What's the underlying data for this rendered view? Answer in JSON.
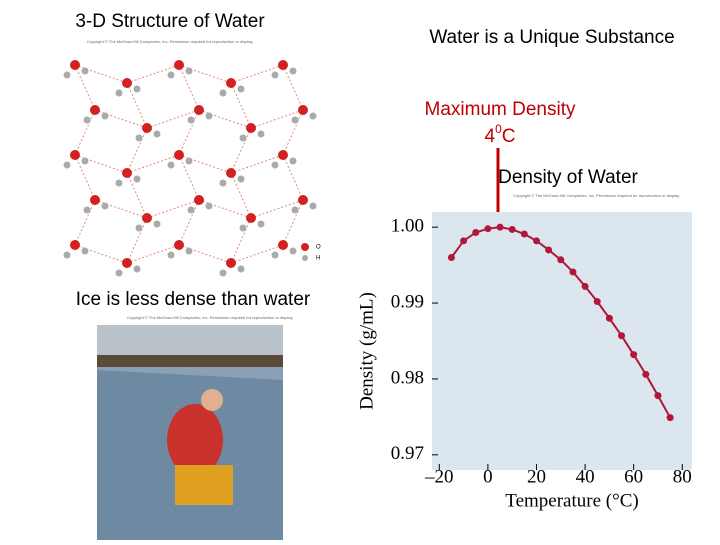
{
  "slide": {
    "left_title": "3-D Structure of Water",
    "right_title": "Water is a Unique Substance",
    "max_density": {
      "label": "Maximum Density",
      "temp": "4",
      "sup": "0",
      "unit": "C"
    },
    "ice_caption": "Ice is less dense than water",
    "structure_legend": [
      "O",
      "H"
    ],
    "copyright": "Copyright © The McGraw-Hill Companies, Inc. Permission required for reproduction or display."
  },
  "chart_data": {
    "type": "line",
    "title": "Density of Water",
    "annotation": "Copyright © The McGraw-Hill Companies, Inc. Permission required for reproduction or display.",
    "x_label": "Temperature (°C)",
    "y_label": "Density (g/mL)",
    "x": [
      -15,
      -10,
      -5,
      0,
      5,
      10,
      15,
      20,
      25,
      30,
      35,
      40,
      45,
      50,
      55,
      60,
      65,
      70,
      75
    ],
    "series": [
      {
        "name": "Density",
        "color": "#b0173a",
        "values": [
          0.996,
          0.9982,
          0.9993,
          0.9998,
          1.0,
          0.9997,
          0.9991,
          0.9982,
          0.997,
          0.9957,
          0.9941,
          0.9922,
          0.9902,
          0.988,
          0.9857,
          0.9832,
          0.9806,
          0.9778,
          0.9749
        ]
      }
    ],
    "xlim": [
      -23,
      84
    ],
    "ylim": [
      0.968,
      1.002
    ],
    "xticks": [
      {
        "value": -20,
        "label": "–20"
      },
      0,
      20,
      40,
      60,
      80
    ],
    "yticks": [
      {
        "value": 1.0,
        "label": "1.00"
      },
      0.99,
      0.98,
      0.97
    ],
    "background": "#dce6ef"
  }
}
